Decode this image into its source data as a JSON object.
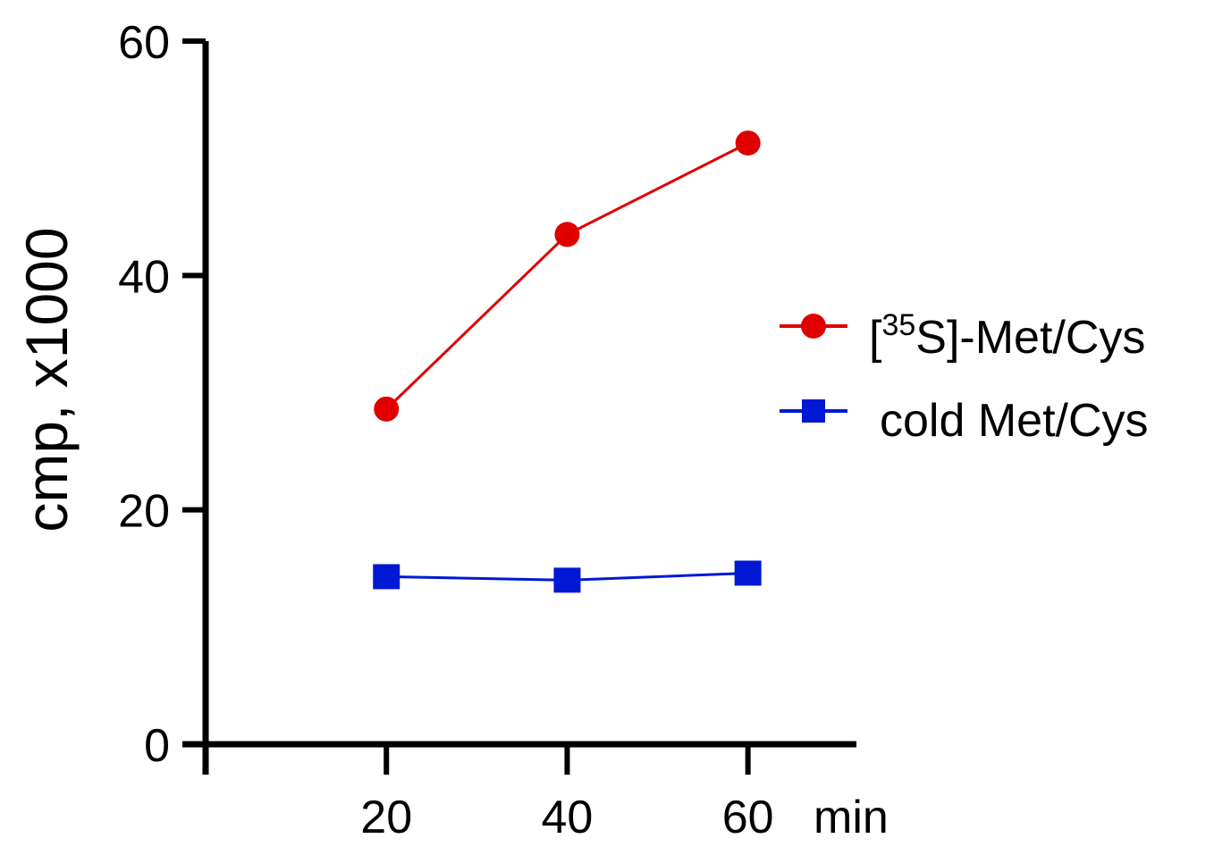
{
  "chart_data": {
    "type": "line",
    "title": "",
    "xlabel": "min",
    "ylabel": "cmp, x1000",
    "x": [
      20,
      40,
      60
    ],
    "xlim": [
      0,
      72
    ],
    "ylim": [
      0,
      60
    ],
    "x_ticks": [
      20,
      40,
      60
    ],
    "y_ticks": [
      0,
      20,
      40,
      60
    ],
    "x_tick_labels": [
      "20",
      "40",
      "60"
    ],
    "y_tick_labels": [
      "0",
      "20",
      "40",
      "60"
    ],
    "grid": false,
    "legend_position": "right",
    "series": [
      {
        "name": "[35S]-Met/Cys",
        "legend_prefix": "[",
        "legend_sup": "35",
        "legend_suffix": "S]-Met/Cys",
        "values": [
          28.6,
          43.5,
          51.3
        ],
        "color": "#e00000",
        "marker": "circle"
      },
      {
        "name": "cold Met/Cys",
        "values": [
          14.3,
          14.0,
          14.6
        ],
        "color": "#0018d4",
        "marker": "square"
      }
    ]
  }
}
